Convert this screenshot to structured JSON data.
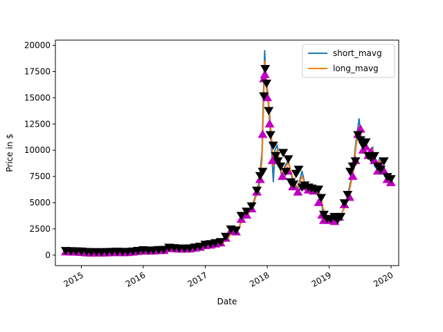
{
  "chart_data": {
    "type": "line",
    "title": "",
    "xlabel": "Date",
    "ylabel": "Price in $",
    "xlim": [
      "2014-08-01",
      "2020-02-15"
    ],
    "ylim": [
      -1000,
      20500
    ],
    "x_ticks": [
      "2015",
      "2016",
      "2017",
      "2018",
      "2019",
      "2020"
    ],
    "y_ticks": [
      0,
      2500,
      5000,
      7500,
      10000,
      12500,
      15000,
      17500,
      20000
    ],
    "grid": false,
    "legend": {
      "placement": "top-right",
      "entries": [
        "short_mavg",
        "long_mavg"
      ]
    },
    "colors": {
      "short_mavg": "#1f77b4",
      "long_mavg": "#ff7f0e",
      "buy_marker": "#bf00bf",
      "sell_marker": "#000000"
    },
    "series": [
      {
        "name": "short_mavg",
        "x": [
          "2014-09-20",
          "2014-10-15",
          "2014-11-15",
          "2014-12-15",
          "2015-01-15",
          "2015-02-15",
          "2015-04-01",
          "2015-06-01",
          "2015-08-01",
          "2015-10-01",
          "2015-11-15",
          "2016-01-01",
          "2016-03-01",
          "2016-05-01",
          "2016-06-20",
          "2016-08-01",
          "2016-10-01",
          "2016-12-01",
          "2017-01-05",
          "2017-03-01",
          "2017-04-15",
          "2017-05-20",
          "2017-06-15",
          "2017-07-15",
          "2017-08-15",
          "2017-09-15",
          "2017-10-15",
          "2017-11-15",
          "2017-12-01",
          "2017-12-10",
          "2017-12-17",
          "2017-12-24",
          "2018-01-05",
          "2018-01-15",
          "2018-01-25",
          "2018-02-06",
          "2018-02-15",
          "2018-03-01",
          "2018-03-15",
          "2018-04-01",
          "2018-04-15",
          "2018-05-05",
          "2018-05-25",
          "2018-06-15",
          "2018-07-01",
          "2018-07-25",
          "2018-08-15",
          "2018-09-15",
          "2018-10-15",
          "2018-11-10",
          "2018-11-25",
          "2018-12-15",
          "2019-01-15",
          "2019-02-15",
          "2019-03-15",
          "2019-04-10",
          "2019-05-01",
          "2019-05-20",
          "2019-06-10",
          "2019-06-26",
          "2019-07-10",
          "2019-07-25",
          "2019-08-10",
          "2019-08-25",
          "2019-09-15",
          "2019-09-25",
          "2019-10-10",
          "2019-10-26",
          "2019-11-10",
          "2019-11-25",
          "2019-12-10",
          "2019-12-31"
        ],
        "y": [
          420,
          380,
          370,
          350,
          280,
          240,
          260,
          240,
          270,
          280,
          350,
          430,
          420,
          460,
          700,
          620,
          620,
          780,
          950,
          1100,
          1200,
          1800,
          2600,
          2500,
          3800,
          4100,
          5200,
          7000,
          9800,
          15500,
          19500,
          16500,
          15000,
          12800,
          10500,
          7000,
          10000,
          10500,
          8500,
          7200,
          8500,
          9000,
          7500,
          6500,
          6400,
          8000,
          6500,
          6500,
          6300,
          5500,
          4200,
          3600,
          3600,
          3600,
          3900,
          5000,
          6500,
          8000,
          11000,
          13000,
          11000,
          10000,
          10500,
          10000,
          10300,
          8500,
          8200,
          9300,
          8600,
          7500,
          7300,
          7200
        ]
      },
      {
        "name": "long_mavg",
        "x": [
          "2014-09-20",
          "2014-10-15",
          "2014-11-15",
          "2014-12-15",
          "2015-01-15",
          "2015-02-15",
          "2015-04-01",
          "2015-06-01",
          "2015-08-01",
          "2015-10-01",
          "2015-11-15",
          "2016-01-01",
          "2016-03-01",
          "2016-05-01",
          "2016-06-20",
          "2016-08-01",
          "2016-10-01",
          "2016-12-01",
          "2017-01-05",
          "2017-03-01",
          "2017-04-15",
          "2017-05-20",
          "2017-06-15",
          "2017-07-15",
          "2017-08-15",
          "2017-09-15",
          "2017-10-15",
          "2017-11-15",
          "2017-12-01",
          "2017-12-10",
          "2017-12-17",
          "2017-12-24",
          "2018-01-05",
          "2018-01-15",
          "2018-01-25",
          "2018-02-06",
          "2018-02-15",
          "2018-03-01",
          "2018-03-15",
          "2018-04-01",
          "2018-04-15",
          "2018-05-05",
          "2018-05-25",
          "2018-06-15",
          "2018-07-01",
          "2018-07-25",
          "2018-08-15",
          "2018-09-15",
          "2018-10-15",
          "2018-11-10",
          "2018-11-25",
          "2018-12-15",
          "2019-01-15",
          "2019-02-15",
          "2019-03-15",
          "2019-04-10",
          "2019-05-01",
          "2019-05-20",
          "2019-06-10",
          "2019-06-26",
          "2019-07-10",
          "2019-07-25",
          "2019-08-10",
          "2019-08-25",
          "2019-09-15",
          "2019-09-25",
          "2019-10-10",
          "2019-10-26",
          "2019-11-10",
          "2019-11-25",
          "2019-12-10",
          "2019-12-31"
        ],
        "y": [
          420,
          390,
          375,
          355,
          290,
          245,
          255,
          245,
          265,
          280,
          340,
          420,
          425,
          455,
          680,
          630,
          620,
          760,
          930,
          1080,
          1180,
          1700,
          2500,
          2550,
          3600,
          4000,
          5000,
          6600,
          9000,
          14000,
          18500,
          17000,
          15500,
          13500,
          11500,
          8500,
          9500,
          10000,
          8800,
          7600,
          8300,
          8800,
          7700,
          6700,
          6500,
          7500,
          6700,
          6500,
          6400,
          5800,
          4500,
          3800,
          3700,
          3700,
          3900,
          4800,
          6200,
          7600,
          10500,
          12200,
          11200,
          10300,
          10300,
          10100,
          10100,
          9000,
          8400,
          9000,
          8700,
          7800,
          7400,
          7300
        ]
      }
    ],
    "markers": {
      "buy": {
        "x": [
          "2014-10-01",
          "2014-11-01",
          "2014-12-01",
          "2015-01-01",
          "2015-02-01",
          "2015-03-01",
          "2015-04-01",
          "2015-05-01",
          "2015-06-01",
          "2015-07-01",
          "2015-08-01",
          "2015-09-01",
          "2015-10-01",
          "2015-11-01",
          "2015-12-01",
          "2016-01-01",
          "2016-02-01",
          "2016-03-01",
          "2016-04-01",
          "2016-05-01",
          "2016-06-01",
          "2016-07-01",
          "2016-08-01",
          "2016-09-01",
          "2016-10-01",
          "2016-11-01",
          "2016-12-01",
          "2017-01-01",
          "2017-02-01",
          "2017-03-01",
          "2017-04-01",
          "2017-05-01",
          "2017-06-01",
          "2017-07-01",
          "2017-08-01",
          "2017-09-01",
          "2017-10-01",
          "2017-11-01",
          "2017-11-20",
          "2017-12-05",
          "2017-12-12",
          "2017-12-18",
          "2018-01-01",
          "2018-01-15",
          "2018-02-01",
          "2018-03-01",
          "2018-04-01",
          "2018-05-01",
          "2018-06-01",
          "2018-07-01",
          "2018-08-01",
          "2018-09-01",
          "2018-10-01",
          "2018-11-01",
          "2018-11-20",
          "2018-12-01",
          "2019-01-01",
          "2019-02-01",
          "2019-03-01",
          "2019-04-01",
          "2019-05-01",
          "2019-05-20",
          "2019-06-05",
          "2019-06-20",
          "2019-07-05",
          "2019-07-20",
          "2019-08-05",
          "2019-08-20",
          "2019-09-05",
          "2019-09-25",
          "2019-10-15",
          "2019-11-01",
          "2019-11-20",
          "2019-12-10",
          "2019-12-31"
        ],
        "y": [
          300,
          280,
          270,
          250,
          200,
          180,
          200,
          180,
          200,
          220,
          230,
          210,
          230,
          280,
          340,
          400,
          360,
          380,
          420,
          440,
          620,
          600,
          560,
          560,
          580,
          660,
          740,
          900,
          950,
          1050,
          1150,
          1600,
          2300,
          2200,
          3400,
          3800,
          4400,
          6000,
          7200,
          11500,
          16800,
          17200,
          15000,
          12500,
          9000,
          9000,
          7500,
          8000,
          6500,
          6000,
          6500,
          6200,
          6100,
          5000,
          3800,
          3300,
          3300,
          3200,
          3600,
          4800,
          5500,
          7500,
          9000,
          11500,
          12000,
          10000,
          10300,
          9500,
          9800,
          9000,
          8000,
          8500,
          8000,
          7200,
          6900
        ]
      },
      "sell": {
        "x": [
          "2014-10-01",
          "2014-11-01",
          "2014-12-01",
          "2015-01-01",
          "2015-02-01",
          "2015-03-01",
          "2015-04-01",
          "2015-05-01",
          "2015-06-01",
          "2015-07-01",
          "2015-08-01",
          "2015-09-01",
          "2015-10-01",
          "2015-11-01",
          "2015-12-01",
          "2016-01-01",
          "2016-02-01",
          "2016-03-01",
          "2016-04-01",
          "2016-05-01",
          "2016-06-01",
          "2016-07-01",
          "2016-08-01",
          "2016-09-01",
          "2016-10-01",
          "2016-11-01",
          "2016-12-01",
          "2017-01-01",
          "2017-02-01",
          "2017-03-01",
          "2017-04-01",
          "2017-05-01",
          "2017-06-01",
          "2017-07-01",
          "2017-08-01",
          "2017-09-01",
          "2017-10-01",
          "2017-11-01",
          "2017-11-20",
          "2017-12-05",
          "2017-12-12",
          "2017-12-20",
          "2017-12-28",
          "2018-01-10",
          "2018-01-20",
          "2018-02-05",
          "2018-02-20",
          "2018-03-05",
          "2018-03-20",
          "2018-04-05",
          "2018-04-20",
          "2018-05-05",
          "2018-05-20",
          "2018-06-05",
          "2018-06-20",
          "2018-07-05",
          "2018-07-25",
          "2018-08-10",
          "2018-09-01",
          "2018-09-20",
          "2018-10-10",
          "2018-10-30",
          "2018-11-15",
          "2018-12-01",
          "2018-12-20",
          "2019-01-10",
          "2019-02-01",
          "2019-02-20",
          "2019-03-10",
          "2019-04-01",
          "2019-04-20",
          "2019-05-05",
          "2019-05-20",
          "2019-06-05",
          "2019-06-20",
          "2019-07-05",
          "2019-07-20",
          "2019-08-05",
          "2019-08-20",
          "2019-09-05",
          "2019-09-25",
          "2019-10-15",
          "2019-11-01",
          "2019-11-20",
          "2019-12-10",
          "2019-12-31"
        ],
        "y": [
          450,
          430,
          420,
          400,
          360,
          340,
          340,
          330,
          350,
          370,
          380,
          360,
          370,
          400,
          460,
          520,
          480,
          500,
          540,
          560,
          760,
          720,
          680,
          680,
          700,
          780,
          860,
          1050,
          1100,
          1200,
          1300,
          1800,
          2500,
          2400,
          3800,
          4200,
          4700,
          6200,
          7600,
          8000,
          15200,
          17800,
          16400,
          13800,
          11500,
          10500,
          9500,
          9000,
          8500,
          9800,
          8000,
          9200,
          7000,
          6800,
          7800,
          8200,
          6500,
          6700,
          6500,
          6400,
          6300,
          6300,
          5500,
          3900,
          3500,
          3500,
          3700,
          3400,
          3700,
          5000,
          5800,
          8000,
          8500,
          9000,
          11500,
          11000,
          10500,
          10800,
          9500,
          9300,
          9500,
          8500,
          8200,
          9000,
          7500,
          7300
        ]
      }
    }
  }
}
